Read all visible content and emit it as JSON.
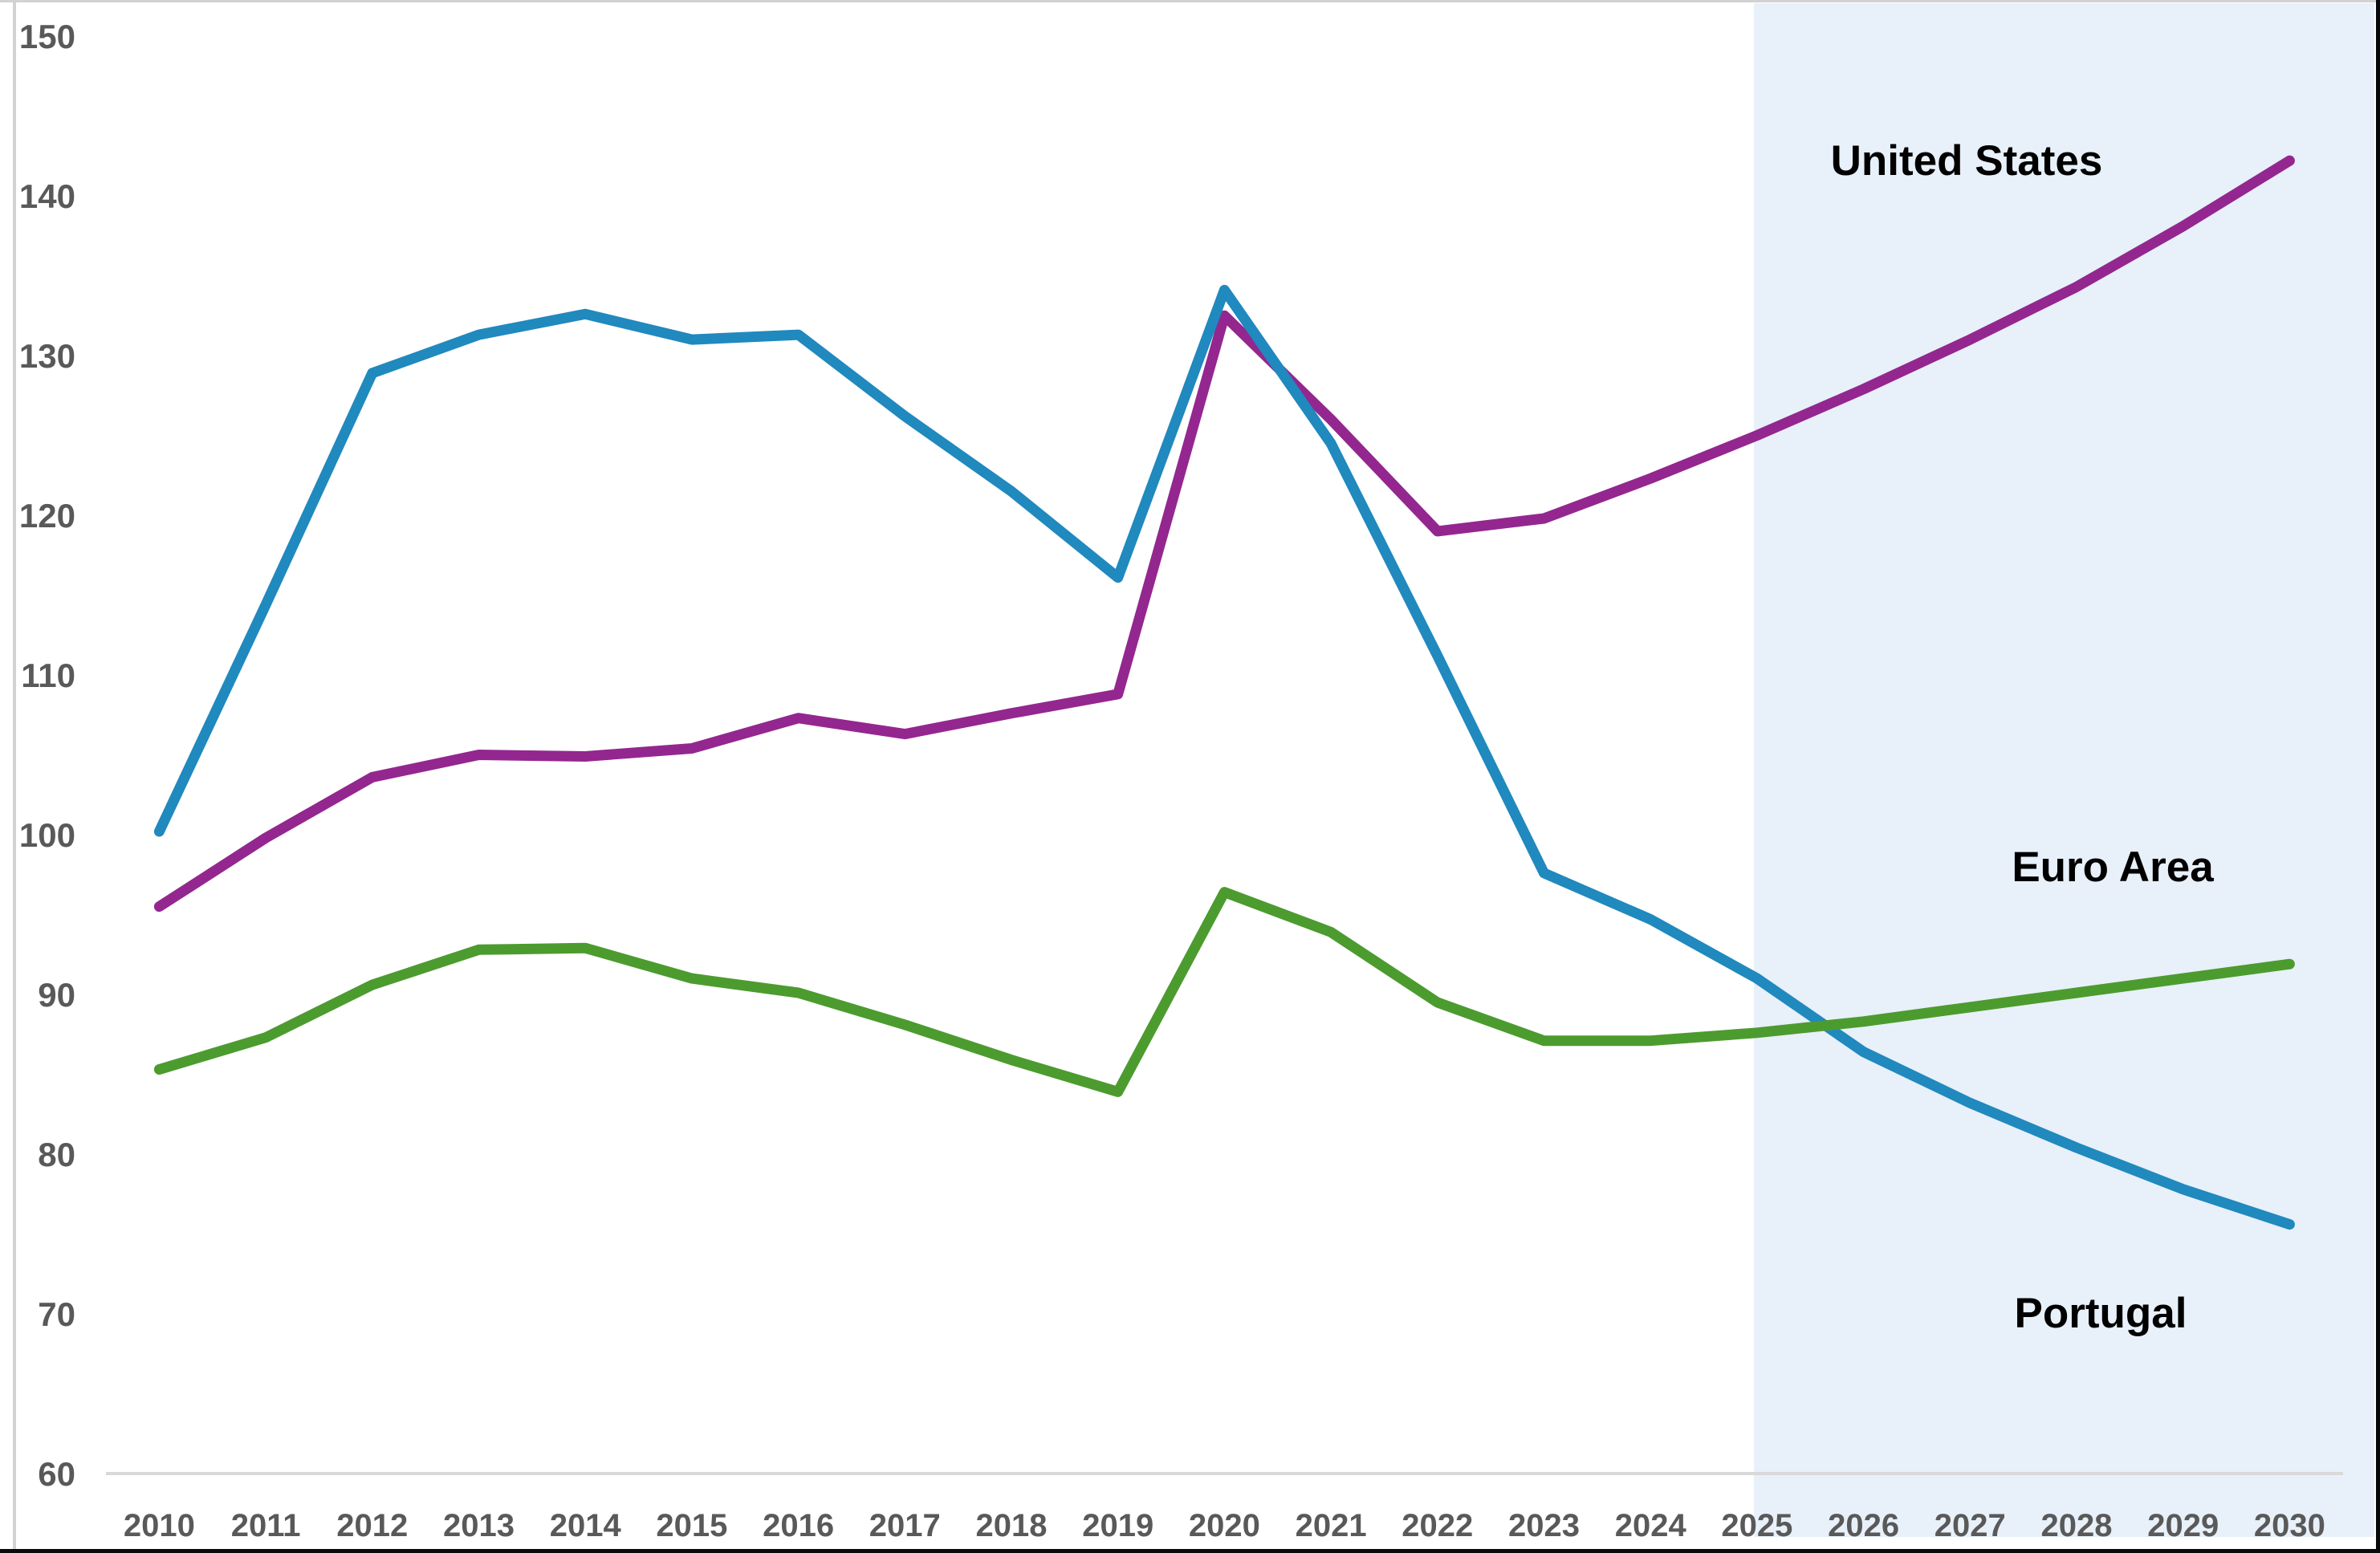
{
  "chart_data": {
    "type": "line",
    "title": "",
    "subtitle": "",
    "x": [
      2010,
      2011,
      2012,
      2013,
      2014,
      2015,
      2016,
      2017,
      2018,
      2019,
      2020,
      2021,
      2022,
      2023,
      2024,
      2025,
      2026,
      2027,
      2028,
      2029,
      2030
    ],
    "series": [
      {
        "name": "United States",
        "color": "#93278F",
        "values": [
          95.5,
          99.8,
          103.6,
          105.0,
          104.9,
          105.4,
          107.3,
          106.3,
          107.6,
          108.8,
          132.5,
          126.0,
          119.0,
          119.8,
          122.3,
          125.0,
          127.9,
          131.0,
          134.3,
          138.1,
          142.2
        ],
        "label_x": 2450,
        "label_y": 200
      },
      {
        "name": "Portugal",
        "color": "#2089BE",
        "values": [
          100.2,
          114.4,
          128.9,
          131.3,
          132.6,
          131.0,
          131.3,
          126.2,
          121.5,
          116.1,
          134.1,
          124.5,
          111.2,
          97.6,
          94.7,
          91.0,
          86.4,
          83.2,
          80.4,
          77.8,
          75.6
        ],
        "label_x": 2617,
        "label_y": 1636
      },
      {
        "name": "Euro Area",
        "color": "#4C9B2F",
        "values": [
          85.3,
          87.3,
          90.6,
          92.8,
          92.9,
          91.0,
          90.1,
          88.1,
          85.9,
          83.9,
          96.4,
          93.9,
          89.5,
          87.1,
          87.1,
          87.6,
          88.3,
          89.2,
          90.1,
          91.0,
          91.9
        ],
        "label_x": 2632,
        "label_y": 1080
      }
    ],
    "ylim": [
      60,
      150
    ],
    "ytick_step": 10,
    "yticks": [
      "60",
      "70",
      "80",
      "90",
      "100",
      "110",
      "120",
      "130",
      "140",
      "150"
    ],
    "xticks": [
      "2010",
      "2011",
      "2012",
      "2013",
      "2014",
      "2015",
      "2016",
      "2017",
      "2018",
      "2019",
      "2020",
      "2021",
      "2022",
      "2023",
      "2024",
      "2025",
      "2026",
      "2027",
      "2028",
      "2029",
      "2030"
    ],
    "grid": false,
    "legend": "direct-labels-on-plot",
    "projection_band": {
      "start_label": "2025",
      "end_label": "2030",
      "color": "#E8F0F9"
    },
    "axis_colors": {
      "tick_text": "#595959",
      "axis_line": "#D9D9D9"
    },
    "frame_colors": {
      "top_left": "#D2D2D2",
      "bottom_right": "#0A0A0A"
    }
  }
}
